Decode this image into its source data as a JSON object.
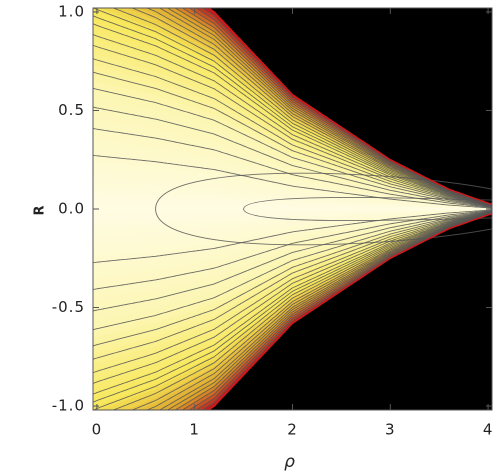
{
  "chart_data": {
    "type": "contour",
    "x_label": "ρ",
    "y_label": "R",
    "xlim": [
      -0.04,
      4.04
    ],
    "ylim": [
      -1.02,
      1.02
    ],
    "xticks": [
      0,
      1,
      2,
      3,
      4
    ],
    "yticks": [
      {
        "value": -1,
        "label": "-1.0"
      },
      {
        "value": -0.5,
        "label": "-0.5"
      },
      {
        "value": 0,
        "label": "0.0"
      },
      {
        "value": 0.5,
        "label": "0.5"
      },
      {
        "value": 1,
        "label": "1.0"
      }
    ]
  }
}
